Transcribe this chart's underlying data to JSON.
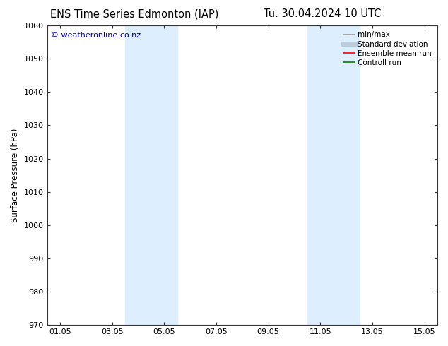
{
  "title_left": "ENS Time Series Edmonton (IAP)",
  "title_right": "Tu. 30.04.2024 10 UTC",
  "ylabel": "Surface Pressure (hPa)",
  "ylim": [
    970,
    1060
  ],
  "yticks": [
    970,
    980,
    990,
    1000,
    1010,
    1020,
    1030,
    1040,
    1050,
    1060
  ],
  "xlim_start": 0.5,
  "xlim_end": 15.5,
  "xtick_labels": [
    "01.05",
    "03.05",
    "05.05",
    "07.05",
    "09.05",
    "11.05",
    "13.05",
    "15.05"
  ],
  "xtick_positions": [
    1,
    3,
    5,
    7,
    9,
    11,
    13,
    15
  ],
  "shaded_regions": [
    {
      "x_start": 3.5,
      "x_end": 4.5,
      "color": "#ddeeff"
    },
    {
      "x_start": 4.5,
      "x_end": 5.5,
      "color": "#ddeeff"
    },
    {
      "x_start": 10.5,
      "x_end": 11.5,
      "color": "#ddeeff"
    },
    {
      "x_start": 11.5,
      "x_end": 12.5,
      "color": "#ddeeff"
    }
  ],
  "watermark_text": "© weatheronline.co.nz",
  "watermark_color": "#0000bb",
  "watermark_fontsize": 8,
  "legend_entries": [
    {
      "label": "min/max",
      "color": "#999999",
      "lw": 1.2,
      "style": "solid"
    },
    {
      "label": "Standard deviation",
      "color": "#bbccdd",
      "lw": 5,
      "style": "solid"
    },
    {
      "label": "Ensemble mean run",
      "color": "red",
      "lw": 1.2,
      "style": "solid"
    },
    {
      "label": "Controll run",
      "color": "green",
      "lw": 1.2,
      "style": "solid"
    }
  ],
  "background_color": "#ffffff",
  "plot_bg_color": "#ffffff",
  "spine_color": "#333333",
  "font_family": "DejaVu Sans",
  "title_fontsize": 10.5,
  "axis_label_fontsize": 8.5,
  "tick_fontsize": 8
}
